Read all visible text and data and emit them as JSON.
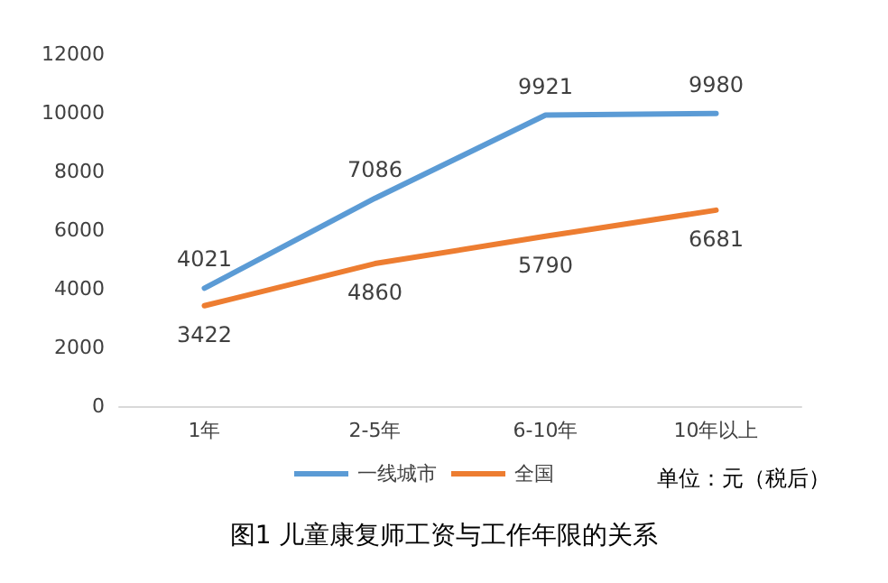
{
  "chart_data": {
    "type": "line",
    "title": "图1 儿童康复师工资与工作年限的关系",
    "categories": [
      "1年",
      "2-5年",
      "6-10年",
      "10年以上"
    ],
    "series": [
      {
        "name": "一线城市",
        "color": "#5b9bd5",
        "values": [
          4021,
          7086,
          9921,
          9980
        ]
      },
      {
        "name": "全国",
        "color": "#ed7d31",
        "values": [
          3422,
          4860,
          5790,
          6681
        ]
      }
    ],
    "ylim": [
      0,
      12000
    ],
    "yticks": [
      0,
      2000,
      4000,
      6000,
      8000,
      10000,
      12000
    ],
    "grid": false,
    "legend": "bottom",
    "marker": "none",
    "line_style": "solid",
    "data_labels": true,
    "annotations": [
      "单位：元（税后）"
    ]
  }
}
